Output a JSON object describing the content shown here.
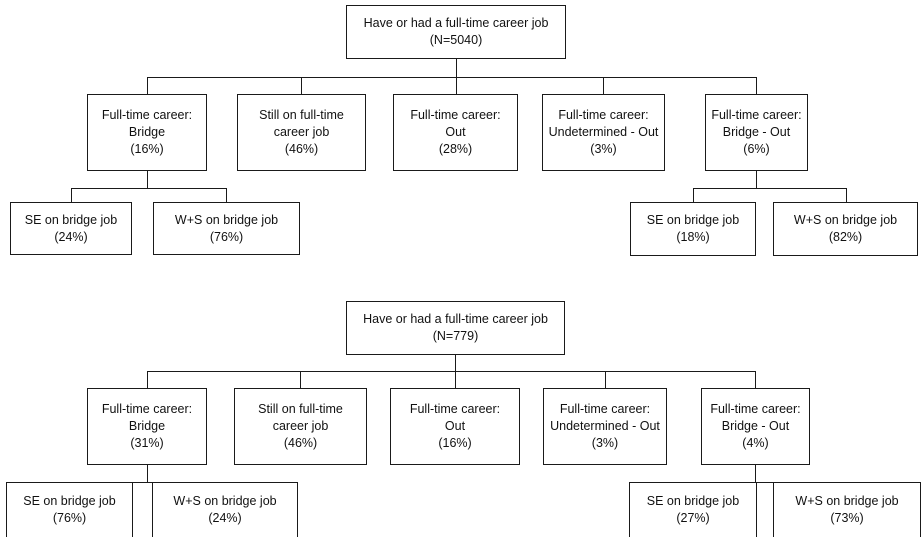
{
  "trees": [
    {
      "root": [
        "Have or had a full-time career job",
        "(N=5040)"
      ],
      "categories": [
        [
          "Full-time career:",
          "Bridge",
          "(16%)"
        ],
        [
          "Still on full-time",
          "career job",
          "(46%)"
        ],
        [
          "Full-time career:",
          "Out",
          "(28%)"
        ],
        [
          "Full-time career:",
          "Undetermined - Out",
          "(3%)"
        ],
        [
          "Full-time career:",
          "Bridge - Out",
          "(6%)"
        ]
      ],
      "bridge_children": [
        [
          "SE on bridge job",
          "(24%)"
        ],
        [
          "W+S on bridge job",
          "(76%)"
        ]
      ],
      "bridge_out_children": [
        [
          "SE on bridge job",
          "(18%)"
        ],
        [
          "W+S on bridge job",
          "(82%)"
        ]
      ]
    },
    {
      "root": [
        "Have or had a full-time career job",
        "(N=779)"
      ],
      "categories": [
        [
          "Full-time career:",
          "Bridge",
          "(31%)"
        ],
        [
          "Still on full-time",
          "career job",
          "(46%)"
        ],
        [
          "Full-time career:",
          "Out",
          "(16%)"
        ],
        [
          "Full-time career:",
          "Undetermined - Out",
          "(3%)"
        ],
        [
          "Full-time career:",
          "Bridge - Out",
          "(4%)"
        ]
      ],
      "bridge_children": [
        [
          "SE on bridge job",
          "(76%)"
        ],
        [
          "W+S on bridge job",
          "(24%)"
        ]
      ],
      "bridge_out_children": [
        [
          "SE on bridge job",
          "(27%)"
        ],
        [
          "W+S on bridge job",
          "(73%)"
        ]
      ]
    }
  ]
}
